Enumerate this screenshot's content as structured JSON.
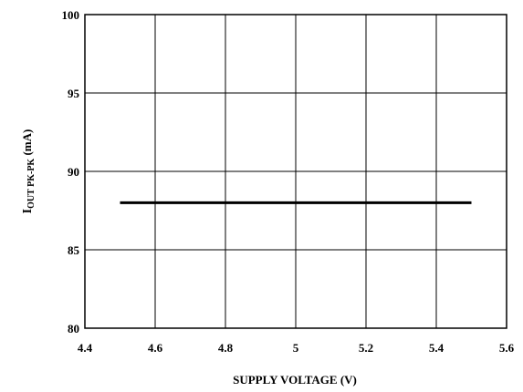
{
  "chart_data": {
    "type": "line",
    "title": "",
    "xlabel": "SUPPLY VOLTAGE (V)",
    "ylabel": {
      "main": "I",
      "subscript": "OUT PK-PK",
      "unit": " (mA)"
    },
    "xlim": [
      4.4,
      5.6
    ],
    "ylim": [
      80,
      100
    ],
    "x_ticks": [
      4.4,
      4.6,
      4.8,
      5.0,
      5.2,
      5.4,
      5.6
    ],
    "x_tick_labels": [
      "4.4",
      "4.6",
      "4.8",
      "5",
      "5.2",
      "5.4",
      "5.6"
    ],
    "y_ticks": [
      80,
      85,
      90,
      95,
      100
    ],
    "y_tick_labels": [
      "80",
      "85",
      "90",
      "95",
      "100"
    ],
    "grid": true,
    "legend": "none",
    "series": [
      {
        "x": [
          4.5,
          5.5
        ],
        "y": [
          88,
          88
        ],
        "color": "#000000"
      }
    ]
  }
}
